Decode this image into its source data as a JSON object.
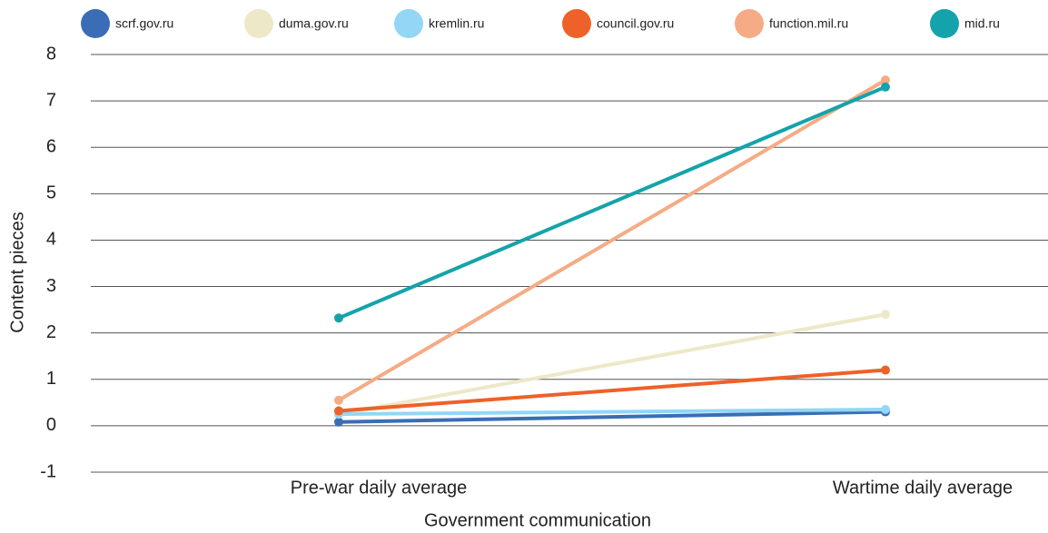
{
  "chart_data": {
    "type": "line",
    "categories": [
      "Pre-war daily average",
      "Wartime daily average"
    ],
    "series": [
      {
        "name": "scrf.gov.ru",
        "color": "#3a6db5",
        "values": [
          0.08,
          0.3
        ]
      },
      {
        "name": "duma.gov.ru",
        "color": "#ede8c8",
        "values": [
          0.25,
          2.4
        ]
      },
      {
        "name": "kremlin.ru",
        "color": "#93d6f5",
        "values": [
          0.25,
          0.35
        ]
      },
      {
        "name": "council.gov.ru",
        "color": "#ee6128",
        "values": [
          0.32,
          1.2
        ]
      },
      {
        "name": "function.mil.ru",
        "color": "#f5ab85",
        "values": [
          0.55,
          7.45
        ]
      },
      {
        "name": "mid.ru",
        "color": "#14a3ab",
        "values": [
          2.32,
          7.3
        ]
      }
    ],
    "ylim": [
      -1,
      8
    ],
    "yticks": [
      -1,
      0,
      1,
      2,
      3,
      4,
      5,
      6,
      7,
      8
    ],
    "grid": true,
    "y_label": "Content pieces",
    "x_label": "Government communication",
    "legend": "top"
  }
}
